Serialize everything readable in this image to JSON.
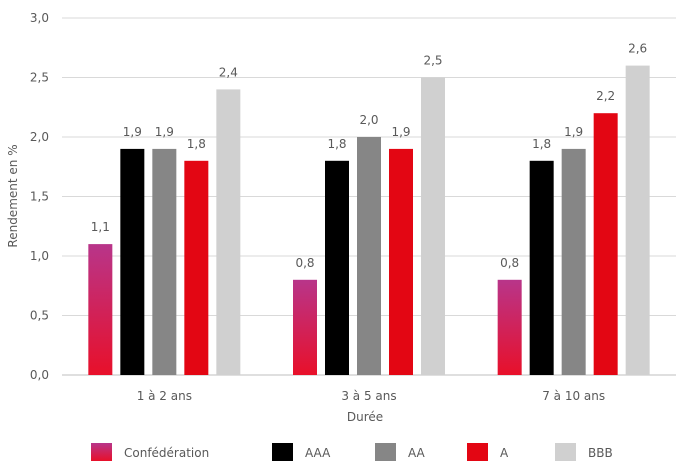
{
  "chart_data": {
    "type": "bar",
    "title": "",
    "xlabel": "Durée",
    "ylabel": "Rendement en %",
    "categories": [
      "1 à 2 ans",
      "3 à 5 ans",
      "7 à 10 ans"
    ],
    "ylim": [
      0,
      3
    ],
    "yticks": [
      "0,0",
      "0,5",
      "1,0",
      "1,5",
      "2,0",
      "2,5",
      "3,0"
    ],
    "grid": true,
    "legend": "bottom",
    "series": [
      {
        "name": "Confédération",
        "values": [
          1.1,
          0.8,
          0.8
        ],
        "labels": [
          "1,1",
          "0,8",
          "0,8"
        ],
        "color": "#d42a6e",
        "gradient": [
          "#b8358a",
          "#e8102a"
        ]
      },
      {
        "name": "AAA",
        "values": [
          1.9,
          1.8,
          1.8
        ],
        "labels": [
          "1,9",
          "1,8",
          "1,8"
        ],
        "color": "#000000"
      },
      {
        "name": "AA",
        "values": [
          1.9,
          2.0,
          1.9
        ],
        "labels": [
          "1,9",
          "2,0",
          "1,9"
        ],
        "color": "#868686"
      },
      {
        "name": "A",
        "values": [
          1.8,
          1.9,
          2.2
        ],
        "labels": [
          "1,8",
          "1,9",
          "2,2"
        ],
        "color": "#e30613"
      },
      {
        "name": "BBB",
        "values": [
          2.4,
          2.5,
          2.6
        ],
        "labels": [
          "2,4",
          "2,5",
          "2,6"
        ],
        "color": "#d0d0d0"
      }
    ]
  }
}
